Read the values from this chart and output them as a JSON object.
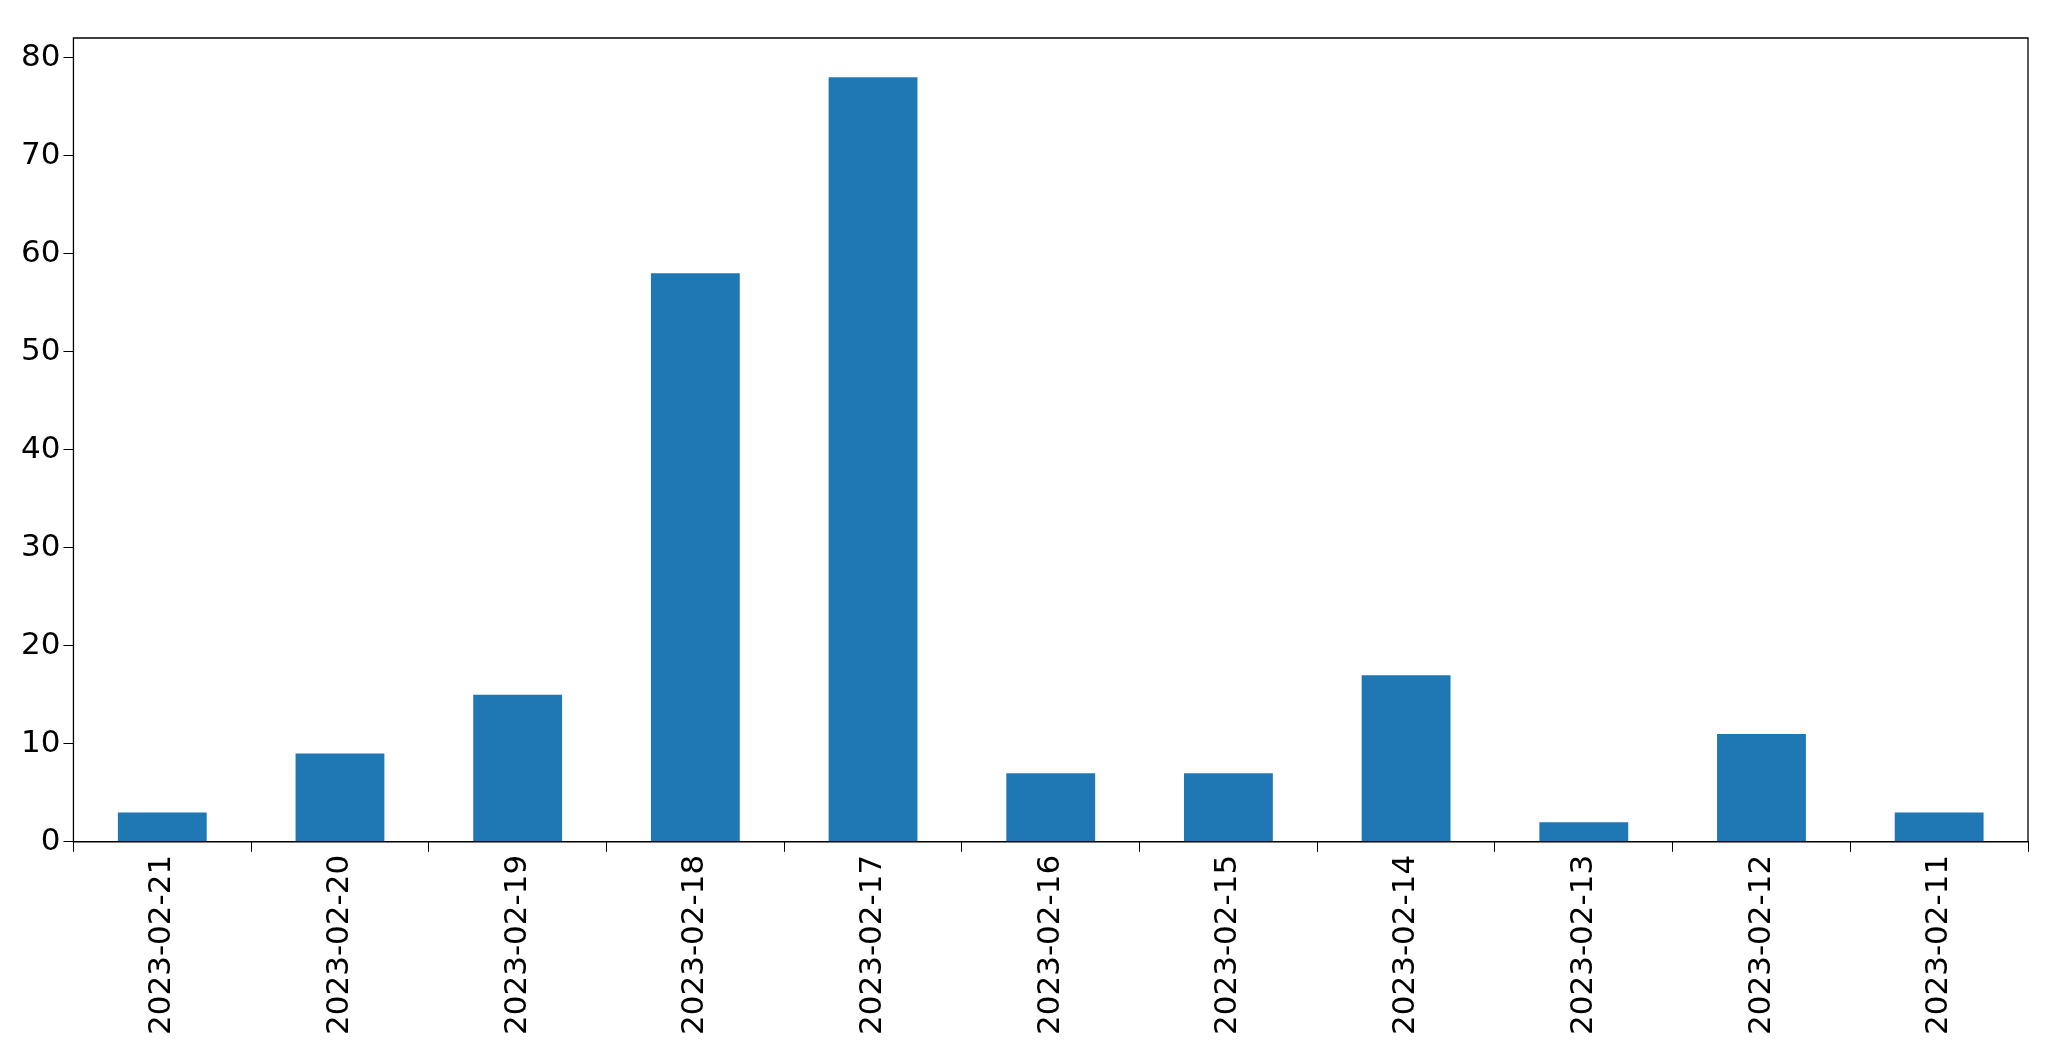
{
  "chart_data": {
    "type": "bar",
    "categories": [
      "2023-02-21",
      "2023-02-20",
      "2023-02-19",
      "2023-02-18",
      "2023-02-17",
      "2023-02-16",
      "2023-02-15",
      "2023-02-14",
      "2023-02-13",
      "2023-02-12",
      "2023-02-11"
    ],
    "values": [
      3,
      9,
      15,
      58,
      78,
      7,
      7,
      17,
      2,
      11,
      3
    ],
    "color": "#1f77b4",
    "ylim": [
      0,
      82
    ],
    "yticks": [
      0,
      10,
      20,
      30,
      40,
      50,
      60,
      70,
      80
    ],
    "grid": false,
    "legend": false
  }
}
